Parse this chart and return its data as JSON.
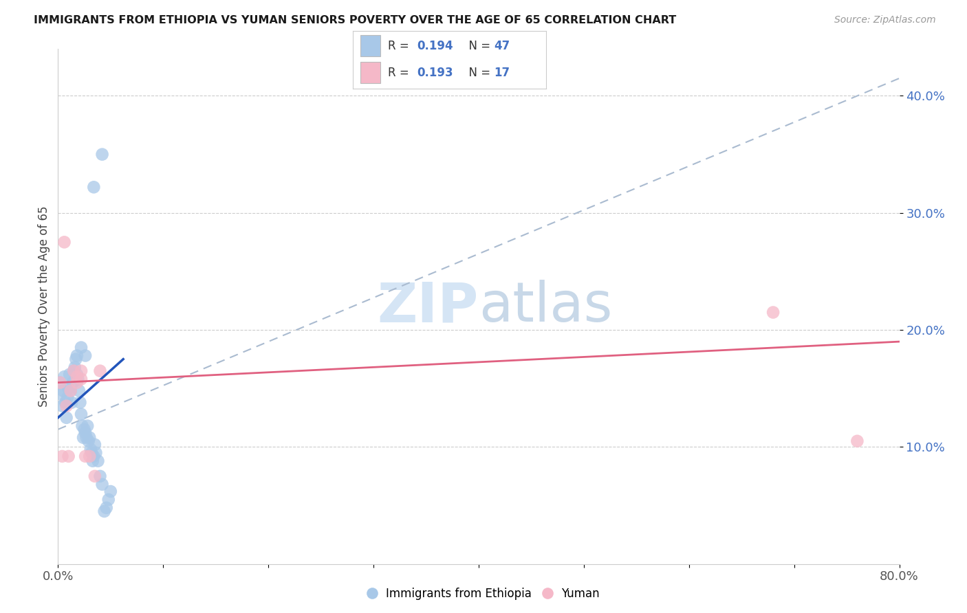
{
  "title": "IMMIGRANTS FROM ETHIOPIA VS YUMAN SENIORS POVERTY OVER THE AGE OF 65 CORRELATION CHART",
  "source": "Source: ZipAtlas.com",
  "ylabel": "Seniors Poverty Over the Age of 65",
  "xlim": [
    0.0,
    0.8
  ],
  "ylim": [
    0.0,
    0.44
  ],
  "xtick_positions": [
    0.0,
    0.1,
    0.2,
    0.3,
    0.4,
    0.5,
    0.6,
    0.7,
    0.8
  ],
  "xticklabels": [
    "0.0%",
    "",
    "",
    "",
    "",
    "",
    "",
    "",
    "80.0%"
  ],
  "ytick_positions": [
    0.1,
    0.2,
    0.3,
    0.4
  ],
  "ytick_labels": [
    "10.0%",
    "20.0%",
    "30.0%",
    "40.0%"
  ],
  "legend_r_blue": "0.194",
  "legend_n_blue": "47",
  "legend_r_pink": "0.193",
  "legend_n_pink": "17",
  "legend_labels": [
    "Immigrants from Ethiopia",
    "Yuman"
  ],
  "blue_scatter_color": "#a8c8e8",
  "pink_scatter_color": "#f5b8c8",
  "blue_line_color": "#2255bb",
  "pink_line_color": "#e06080",
  "dashed_line_color": "#aabbd0",
  "ytick_color": "#4472c4",
  "watermark_color": "#d5e5f5",
  "blue_line_x": [
    0.0,
    0.062
  ],
  "blue_line_y": [
    0.125,
    0.175
  ],
  "pink_line_x": [
    0.0,
    0.8
  ],
  "pink_line_y": [
    0.155,
    0.19
  ],
  "dash_line_x": [
    0.0,
    0.8
  ],
  "dash_line_y": [
    0.115,
    0.415
  ],
  "scatter_blue_x": [
    0.002,
    0.003,
    0.004,
    0.005,
    0.006,
    0.007,
    0.008,
    0.009,
    0.01,
    0.011,
    0.012,
    0.013,
    0.014,
    0.015,
    0.016,
    0.017,
    0.018,
    0.019,
    0.02,
    0.021,
    0.022,
    0.023,
    0.024,
    0.025,
    0.026,
    0.027,
    0.028,
    0.029,
    0.03,
    0.031,
    0.032,
    0.033,
    0.034,
    0.035,
    0.036,
    0.038,
    0.04,
    0.042,
    0.044,
    0.046,
    0.048,
    0.05,
    0.018,
    0.022,
    0.026,
    0.034,
    0.042
  ],
  "scatter_blue_y": [
    0.155,
    0.145,
    0.135,
    0.148,
    0.16,
    0.138,
    0.125,
    0.142,
    0.15,
    0.162,
    0.148,
    0.138,
    0.155,
    0.165,
    0.168,
    0.175,
    0.162,
    0.158,
    0.148,
    0.138,
    0.128,
    0.118,
    0.108,
    0.115,
    0.112,
    0.108,
    0.118,
    0.105,
    0.108,
    0.098,
    0.095,
    0.088,
    0.092,
    0.102,
    0.095,
    0.088,
    0.075,
    0.068,
    0.045,
    0.048,
    0.055,
    0.062,
    0.178,
    0.185,
    0.178,
    0.322,
    0.35
  ],
  "scatter_pink_x": [
    0.002,
    0.004,
    0.006,
    0.008,
    0.01,
    0.012,
    0.015,
    0.018,
    0.022,
    0.026,
    0.03,
    0.035,
    0.022,
    0.018,
    0.04,
    0.68,
    0.76
  ],
  "scatter_pink_y": [
    0.155,
    0.092,
    0.275,
    0.135,
    0.092,
    0.148,
    0.165,
    0.155,
    0.158,
    0.092,
    0.092,
    0.075,
    0.165,
    0.16,
    0.165,
    0.215,
    0.105
  ]
}
